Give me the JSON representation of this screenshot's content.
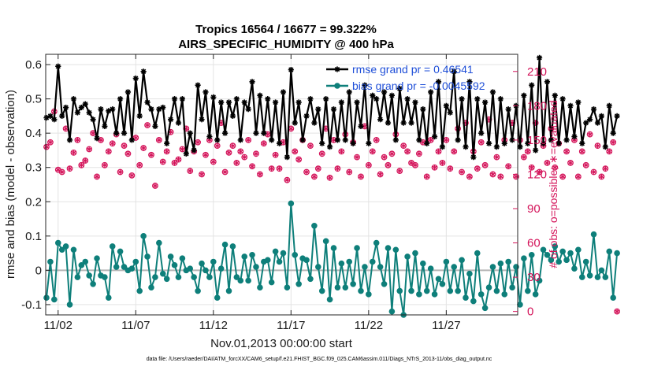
{
  "chart_data": {
    "type": "line",
    "title": "Tropics 16564 / 16677 = 99.322%",
    "subtitle": "AIRS_SPECIFIC_HUMIDITY @ 400 hPa",
    "xlabel": "Nov.01,2013 00:00:00 start",
    "ylabel": "rmse and bias (model - observation)",
    "y2label": "# of obs: o=possible; ∗=evaluated",
    "footnote": "data file: /Users/raeder/DAI/ATM_forcXX/CAM6_setup/f.e21.FHIST_BGC.f09_025.CAM6assim.011/Diags_NTrS_2013-11/obs_diag_output.nc",
    "x_range": [
      0.2,
      30.6
    ],
    "x_ticks": [
      {
        "value": 1,
        "label": "11/02"
      },
      {
        "value": 6,
        "label": "11/07"
      },
      {
        "value": 11,
        "label": "11/12"
      },
      {
        "value": 16,
        "label": "11/17"
      },
      {
        "value": 21,
        "label": "11/22"
      },
      {
        "value": 26,
        "label": "11/27"
      }
    ],
    "ylim": [
      -0.13,
      0.63
    ],
    "y_ticks": [
      -0.1,
      0,
      0.1,
      0.2,
      0.3,
      0.4,
      0.5,
      0.6
    ],
    "y_tick_labels": [
      "-0.1",
      "0",
      "0.1",
      "0.2",
      "0.3",
      "0.4",
      "0.5",
      "0.6"
    ],
    "y2lim": [
      -3,
      225
    ],
    "y2_ticks": [
      0,
      30,
      60,
      90,
      120,
      150,
      180,
      210
    ],
    "y2_tick_labels": [
      "0",
      "30",
      "60",
      "90",
      "120",
      "150",
      "180",
      "210"
    ],
    "zero_line": 0,
    "series": [
      {
        "name": "rmse grand pr = 0.46541",
        "color": "#000000",
        "marker": "star",
        "axis": "left",
        "x_start": 0.25,
        "x_step": 0.25,
        "values": [
          0.445,
          0.45,
          0.44,
          0.595,
          0.45,
          0.475,
          0.38,
          0.5,
          0.46,
          0.475,
          0.485,
          0.46,
          0.44,
          0.385,
          0.47,
          0.42,
          0.465,
          0.47,
          0.4,
          0.5,
          0.4,
          0.52,
          0.38,
          0.56,
          0.45,
          0.58,
          0.49,
          0.47,
          0.42,
          0.47,
          0.475,
          0.37,
          0.44,
          0.5,
          0.43,
          0.5,
          0.34,
          0.4,
          0.35,
          0.54,
          0.44,
          0.52,
          0.39,
          0.505,
          0.38,
          0.49,
          0.4,
          0.49,
          0.45,
          0.5,
          0.38,
          0.49,
          0.47,
          0.55,
          0.4,
          0.51,
          0.4,
          0.5,
          0.38,
          0.49,
          0.37,
          0.52,
          0.33,
          0.585,
          0.43,
          0.49,
          0.38,
          0.45,
          0.5,
          0.43,
          0.47,
          0.37,
          0.5,
          0.36,
          0.47,
          0.38,
          0.49,
          0.38,
          0.52,
          0.37,
          0.49,
          0.42,
          0.54,
          0.37,
          0.51,
          0.5,
          0.44,
          0.52,
          0.43,
          0.51,
          0.38,
          0.53,
          0.43,
          0.5,
          0.43,
          0.49,
          0.38,
          0.47,
          0.37,
          0.52,
          0.39,
          0.55,
          0.36,
          0.48,
          0.46,
          0.58,
          0.38,
          0.5,
          0.36,
          0.55,
          0.33,
          0.5,
          0.4,
          0.49,
          0.37,
          0.52,
          0.36,
          0.5,
          0.37,
          0.47,
          0.38,
          0.48,
          0.36,
          0.51,
          0.37,
          0.54,
          0.35,
          0.62,
          0.37,
          0.55,
          0.38,
          0.51,
          0.37,
          0.5,
          0.38,
          0.48,
          0.39,
          0.49,
          0.37,
          0.43,
          0.44,
          0.47,
          0.43,
          0.45,
          0.36,
          0.48,
          0.4,
          0.45
        ]
      },
      {
        "name": "bias grand pr = -0.0045592",
        "color": "#0e7f7a",
        "marker": "circle",
        "axis": "left",
        "x_start": 0.25,
        "x_step": 0.25,
        "values": [
          -0.08,
          0.025,
          -0.085,
          0.08,
          0.06,
          0.07,
          -0.1,
          0.06,
          -0.02,
          0.015,
          0.025,
          -0.015,
          -0.04,
          0.035,
          -0.015,
          -0.02,
          -0.08,
          0.07,
          0.01,
          0.055,
          0.01,
          0.0,
          0.005,
          0.025,
          -0.06,
          0.1,
          0.04,
          -0.05,
          -0.02,
          0.08,
          -0.01,
          -0.025,
          0.04,
          0.015,
          -0.02,
          0.035,
          0.0,
          0.005,
          -0.02,
          -0.06,
          0.02,
          0.0,
          -0.02,
          0.025,
          -0.08,
          0.005,
          0.075,
          -0.06,
          0.07,
          -0.02,
          -0.03,
          0.04,
          -0.03,
          0.045,
          0.01,
          -0.05,
          0.025,
          0.03,
          -0.035,
          0.055,
          0.025,
          0.05,
          -0.05,
          0.195,
          0.045,
          -0.04,
          0.035,
          0.03,
          -0.025,
          0.13,
          0.01,
          -0.06,
          0.085,
          -0.085,
          0.065,
          -0.05,
          0.02,
          -0.05,
          0.025,
          -0.04,
          0.065,
          -0.06,
          0.01,
          -0.07,
          0.025,
          0.08,
          0.01,
          -0.04,
          0.065,
          -0.12,
          0.06,
          -0.06,
          -0.13,
          0.04,
          -0.06,
          0.05,
          -0.07,
          0.02,
          -0.06,
          0.005,
          -0.07,
          -0.025,
          -0.04,
          0.025,
          -0.06,
          0.01,
          -0.06,
          0.03,
          -0.08,
          -0.01,
          -0.09,
          0.05,
          -0.07,
          -0.11,
          -0.05,
          0.01,
          -0.06,
          0.02,
          -0.07,
          0.025,
          -0.05,
          0.01,
          -0.1,
          0.035,
          -0.06,
          0.045,
          -0.07,
          -0.03,
          0.06,
          0.045,
          0.03,
          0.07,
          0.025,
          0.055,
          0.03,
          0.05,
          0.005,
          0.06,
          -0.02,
          0.025,
          -0.015,
          0.105,
          -0.02,
          0.0,
          -0.02,
          0.055,
          -0.08,
          0.05
        ]
      },
      {
        "name": "# obs possible",
        "color": "#d4145a",
        "marker": "o",
        "axis": "right",
        "x_start": 0.25,
        "x_step": 0.25,
        "values": [
          144,
          148,
          175,
          124,
          122,
          160,
          125,
          139,
          150,
          128,
          132,
          142,
          156,
          118,
          150,
          128,
          140,
          147,
          155,
          122,
          145,
          138,
          119,
          152,
          128,
          143,
          163,
          137,
          110,
          150,
          131,
          140,
          157,
          130,
          133,
          142,
          160,
          123,
          140,
          148,
          120,
          137,
          150,
          131,
          145,
          165,
          122,
          139,
          145,
          130,
          140,
          135,
          150,
          127,
          138,
          120,
          147,
          155,
          125,
          137,
          125,
          148,
          115,
          160,
          140,
          133,
          150,
          122,
          145,
          118,
          125,
          138,
          160,
          117,
          150,
          125,
          140,
          155,
          122,
          148,
          135,
          118,
          162,
          128,
          140,
          150,
          120,
          135,
          128,
          138,
          155,
          123,
          145,
          140,
          130,
          128,
          138,
          148,
          118,
          150,
          126,
          140,
          130,
          150,
          125,
          140,
          160,
          122,
          165,
          118,
          140,
          125,
          148,
          128,
          168,
          120,
          135,
          118,
          150,
          127,
          165,
          118,
          150,
          135,
          140,
          126,
          165,
          122,
          145,
          130,
          160,
          126,
          147,
          118,
          140,
          130,
          150,
          118,
          140,
          128,
          155,
          122,
          145,
          118,
          125,
          140,
          148,
          0
        ]
      },
      {
        "name": "# obs evaluated",
        "color": "#d4145a",
        "marker": "asterisk",
        "axis": "right",
        "x_start": 0.25,
        "x_step": 0.25,
        "values": [
          144,
          148,
          175,
          124,
          122,
          160,
          125,
          139,
          150,
          128,
          132,
          142,
          156,
          118,
          150,
          128,
          140,
          147,
          155,
          122,
          145,
          138,
          119,
          152,
          128,
          143,
          163,
          137,
          110,
          150,
          131,
          140,
          157,
          130,
          133,
          142,
          160,
          123,
          140,
          148,
          120,
          137,
          150,
          131,
          145,
          165,
          122,
          139,
          145,
          130,
          140,
          135,
          150,
          127,
          138,
          120,
          147,
          155,
          125,
          137,
          125,
          148,
          115,
          160,
          140,
          133,
          150,
          122,
          145,
          118,
          125,
          138,
          160,
          117,
          150,
          125,
          140,
          155,
          122,
          148,
          135,
          118,
          162,
          128,
          140,
          150,
          120,
          135,
          128,
          138,
          155,
          123,
          145,
          140,
          130,
          128,
          138,
          148,
          118,
          150,
          126,
          140,
          130,
          150,
          125,
          140,
          160,
          122,
          165,
          118,
          140,
          125,
          148,
          128,
          168,
          120,
          135,
          118,
          150,
          127,
          165,
          118,
          150,
          135,
          140,
          126,
          165,
          122,
          145,
          130,
          160,
          126,
          147,
          118,
          140,
          130,
          150,
          118,
          140,
          128,
          155,
          122,
          145,
          118,
          125,
          140,
          148,
          0
        ]
      }
    ],
    "legend": {
      "placement": "top-right",
      "entries": [
        "rmse grand pr = 0.46541",
        "bias grand pr = -0.0045592"
      ]
    }
  }
}
